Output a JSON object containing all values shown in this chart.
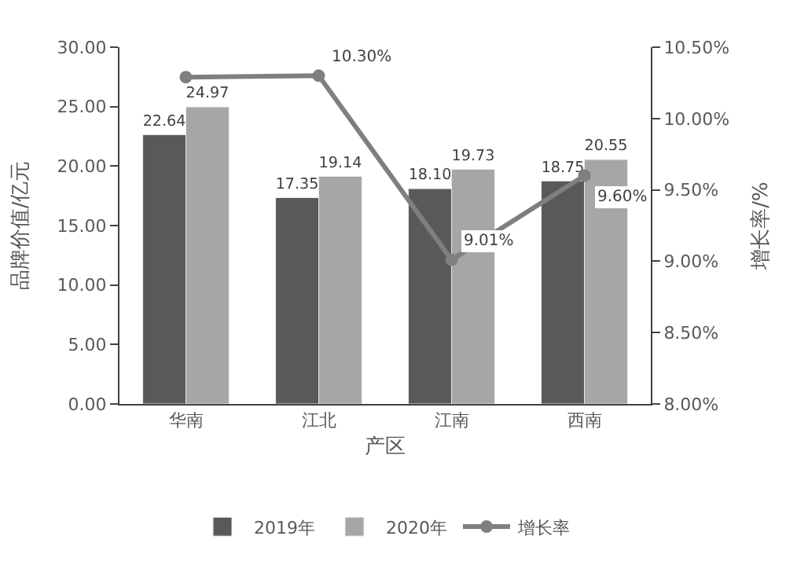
{
  "chart_data": {
    "type": "bar",
    "categories": [
      "华南",
      "江北",
      "江南",
      "西南"
    ],
    "xlabel": "产区",
    "ylabel": "品牌价值/亿元",
    "y2label": "增长率/%",
    "series": [
      {
        "name": "2019年",
        "color": "#595959",
        "values": [
          22.64,
          17.35,
          18.1,
          18.75
        ],
        "value_labels": [
          "22.64",
          "17.35",
          "18.10",
          "18.75"
        ]
      },
      {
        "name": "2020年",
        "color": "#a6a6a6",
        "values": [
          24.97,
          19.14,
          19.73,
          20.55
        ],
        "value_labels": [
          "24.97",
          "19.14",
          "19.73",
          "20.55"
        ]
      },
      {
        "name": "增长率",
        "type": "line",
        "axis": "y2",
        "color": "#7f7f7f",
        "marker": "circle",
        "values": [
          10.29,
          10.3,
          9.01,
          9.6
        ],
        "value_labels": [
          null,
          "10.30%",
          "9.01%",
          "9.60%"
        ]
      }
    ],
    "ylim": [
      0,
      30
    ],
    "yticks": [
      {
        "value": 0,
        "label": "0.00"
      },
      {
        "value": 5,
        "label": "5.00"
      },
      {
        "value": 10,
        "label": "10.00"
      },
      {
        "value": 15,
        "label": "15.00"
      },
      {
        "value": 20,
        "label": "20.00"
      },
      {
        "value": 25,
        "label": "25.00"
      },
      {
        "value": 30,
        "label": "30.00"
      }
    ],
    "y2lim": [
      8,
      10.5
    ],
    "y2ticks": [
      {
        "value": 8,
        "label": "8.00%"
      },
      {
        "value": 8.5,
        "label": "8.50%"
      },
      {
        "value": 9,
        "label": "9.00%"
      },
      {
        "value": 9.5,
        "label": "9.50%"
      },
      {
        "value": 10,
        "label": "10.00%"
      },
      {
        "value": 10.5,
        "label": "10.50%"
      }
    ],
    "legend": "bottom"
  }
}
